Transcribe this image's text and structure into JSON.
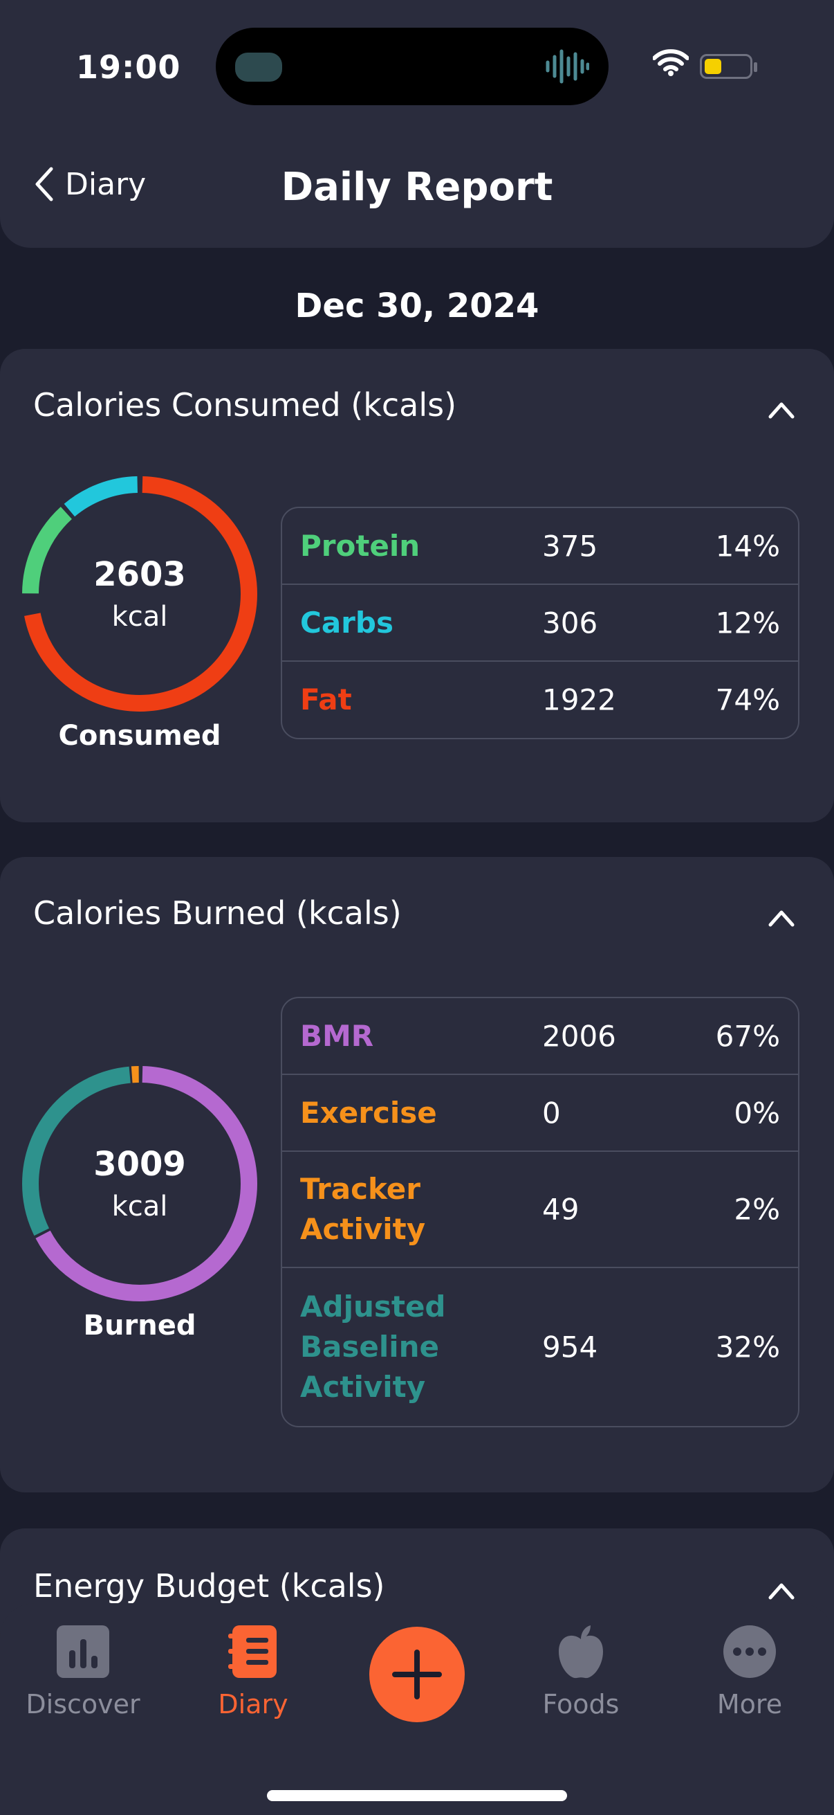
{
  "status_bar": {
    "time": "19:00"
  },
  "header": {
    "back_label": "Diary",
    "title": "Daily Report"
  },
  "date": "Dec 30, 2024",
  "colors": {
    "protein": "#4fcf7b",
    "carbs": "#22c7dc",
    "fat": "#ef3e14",
    "bmr": "#b569d0",
    "exercise": "#f6911b",
    "tracker_activity": "#f6911b",
    "adjusted_baseline": "#2e928d",
    "accent": "#fb6433"
  },
  "consumed": {
    "title": "Calories Consumed (kcals)",
    "total": "2603",
    "unit": "kcal",
    "caption": "Consumed",
    "rows": [
      {
        "name": "Protein",
        "value": "375",
        "pct": "14%"
      },
      {
        "name": "Carbs",
        "value": "306",
        "pct": "12%"
      },
      {
        "name": "Fat",
        "value": "1922",
        "pct": "74%"
      }
    ]
  },
  "burned": {
    "title": "Calories Burned (kcals)",
    "total": "3009",
    "unit": "kcal",
    "caption": "Burned",
    "rows": [
      {
        "name": "BMR",
        "value": "2006",
        "pct": "67%"
      },
      {
        "name": "Exercise",
        "value": "0",
        "pct": "0%"
      },
      {
        "name": "Tracker Activity",
        "value": "49",
        "pct": "2%"
      },
      {
        "name": "Adjusted Baseline Activity",
        "value": "954",
        "pct": "32%"
      }
    ]
  },
  "energy_budget": {
    "title": "Energy Budget (kcals)"
  },
  "tabbar": {
    "discover": "Discover",
    "diary": "Diary",
    "foods": "Foods",
    "more": "More"
  }
}
